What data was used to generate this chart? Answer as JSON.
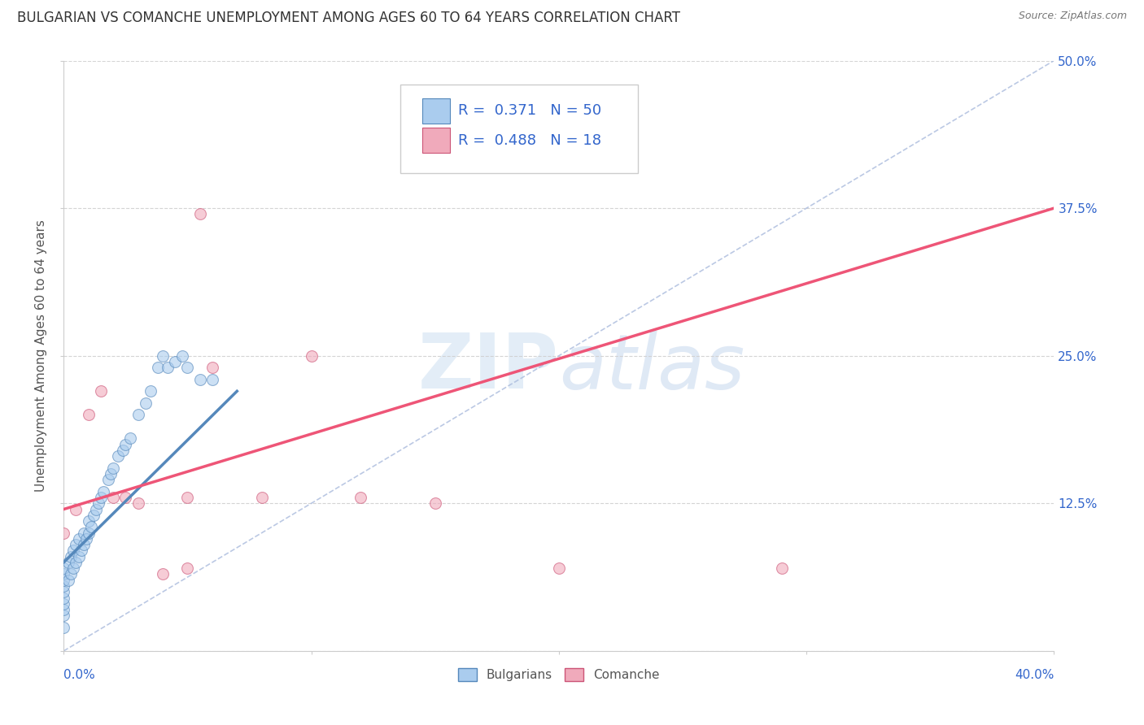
{
  "title": "BULGARIAN VS COMANCHE UNEMPLOYMENT AMONG AGES 60 TO 64 YEARS CORRELATION CHART",
  "source": "Source: ZipAtlas.com",
  "watermark": "ZIPatlas",
  "bg_color": "#ffffff",
  "plot_bg_color": "#ffffff",
  "grid_color": "#d0d0d0",
  "bulgarian_color": "#aaccee",
  "comanche_color": "#f0aabb",
  "bulgarian_edge_color": "#5588bb",
  "comanche_edge_color": "#cc5577",
  "blue_line_color": "#5588bb",
  "pink_line_color": "#ee5577",
  "ref_line_color": "#aabbdd",
  "legend_text_color": "#3366cc",
  "r_bulgarian": 0.371,
  "n_bulgarian": 50,
  "r_comanche": 0.488,
  "n_comanche": 18,
  "xlim": [
    0.0,
    0.4
  ],
  "ylim": [
    0.0,
    0.5
  ],
  "ylabel": "Unemployment Among Ages 60 to 64 years",
  "title_fontsize": 12,
  "axis_label_fontsize": 11,
  "tick_fontsize": 11,
  "legend_fontsize": 12,
  "bulgarian_x": [
    0.0,
    0.0,
    0.0,
    0.0,
    0.0,
    0.0,
    0.0,
    0.0,
    0.0,
    0.0,
    0.002,
    0.002,
    0.003,
    0.003,
    0.004,
    0.004,
    0.005,
    0.005,
    0.006,
    0.006,
    0.007,
    0.008,
    0.008,
    0.009,
    0.01,
    0.01,
    0.011,
    0.012,
    0.013,
    0.014,
    0.015,
    0.016,
    0.018,
    0.019,
    0.02,
    0.022,
    0.024,
    0.025,
    0.027,
    0.03,
    0.033,
    0.035,
    0.038,
    0.04,
    0.042,
    0.045,
    0.048,
    0.05,
    0.055,
    0.06
  ],
  "bulgarian_y": [
    0.02,
    0.03,
    0.035,
    0.04,
    0.045,
    0.05,
    0.055,
    0.06,
    0.065,
    0.07,
    0.06,
    0.075,
    0.065,
    0.08,
    0.07,
    0.085,
    0.075,
    0.09,
    0.08,
    0.095,
    0.085,
    0.09,
    0.1,
    0.095,
    0.1,
    0.11,
    0.105,
    0.115,
    0.12,
    0.125,
    0.13,
    0.135,
    0.145,
    0.15,
    0.155,
    0.165,
    0.17,
    0.175,
    0.18,
    0.2,
    0.21,
    0.22,
    0.24,
    0.25,
    0.24,
    0.245,
    0.25,
    0.24,
    0.23,
    0.23
  ],
  "comanche_x": [
    0.0,
    0.005,
    0.01,
    0.015,
    0.02,
    0.025,
    0.03,
    0.04,
    0.05,
    0.055,
    0.06,
    0.08,
    0.1,
    0.12,
    0.15,
    0.2,
    0.29,
    0.05
  ],
  "comanche_y": [
    0.1,
    0.12,
    0.2,
    0.22,
    0.13,
    0.13,
    0.125,
    0.065,
    0.13,
    0.37,
    0.24,
    0.13,
    0.25,
    0.13,
    0.125,
    0.07,
    0.07,
    0.07
  ],
  "blue_line_x": [
    0.0,
    0.07
  ],
  "blue_line_y": [
    0.075,
    0.22
  ],
  "pink_line_x": [
    0.0,
    0.4
  ],
  "pink_line_y": [
    0.12,
    0.375
  ]
}
